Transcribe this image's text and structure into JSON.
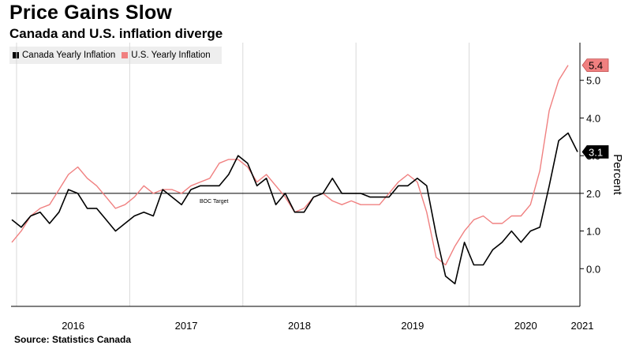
{
  "chart_data": {
    "type": "line",
    "title": "Price Gains Slow",
    "subtitle": "Canada and U.S. inflation diverge",
    "source": "Source: Statistics Canada",
    "ylabel": "Percent",
    "ylim": [
      -1.0,
      6.0
    ],
    "yticks": [
      0.0,
      1.0,
      2.0,
      3.0,
      4.0,
      5.0
    ],
    "ytick_labels": [
      "0.0",
      "1.0",
      "2.0",
      "3.0",
      "4.0",
      "5.0"
    ],
    "x_start": "2015-12",
    "year_labels": [
      {
        "label": "2016",
        "year": 2016
      },
      {
        "label": "2017",
        "year": 2017
      },
      {
        "label": "2018",
        "year": 2018
      },
      {
        "label": "2019",
        "year": 2019
      },
      {
        "label": "2020",
        "year": 2020
      },
      {
        "label": "2021",
        "year": 2021
      }
    ],
    "reference_line": {
      "value": 2.0,
      "label": "BOC Target"
    },
    "series": [
      {
        "name": "Canada Yearly Inflation",
        "color": "#000000",
        "end_label": "3.1",
        "values": [
          1.3,
          1.1,
          1.4,
          1.5,
          1.2,
          1.5,
          2.1,
          2.0,
          1.6,
          1.6,
          1.3,
          1.0,
          1.2,
          1.4,
          1.5,
          1.4,
          2.1,
          1.9,
          1.7,
          2.1,
          2.2,
          2.2,
          2.2,
          2.5,
          3.0,
          2.8,
          2.2,
          2.4,
          1.7,
          2.0,
          1.5,
          1.5,
          1.9,
          2.0,
          2.4,
          2.0,
          2.0,
          2.0,
          1.9,
          1.9,
          1.9,
          2.2,
          2.2,
          2.4,
          2.2,
          0.9,
          -0.2,
          -0.4,
          0.7,
          0.1,
          0.1,
          0.5,
          0.7,
          1.0,
          0.7,
          1.0,
          1.1,
          2.2,
          3.4,
          3.6,
          3.1
        ]
      },
      {
        "name": "U.S. Yearly Inflation",
        "color": "#f08080",
        "end_label": "5.4",
        "values": [
          0.7,
          1.0,
          1.4,
          1.6,
          1.7,
          2.1,
          2.5,
          2.7,
          2.4,
          2.2,
          1.9,
          1.6,
          1.7,
          1.9,
          2.2,
          2.0,
          2.1,
          2.1,
          2.0,
          2.2,
          2.3,
          2.4,
          2.8,
          2.9,
          2.9,
          2.7,
          2.3,
          2.5,
          2.2,
          1.9,
          1.5,
          1.6,
          1.9,
          2.0,
          1.8,
          1.7,
          1.8,
          1.7,
          1.7,
          1.7,
          2.0,
          2.3,
          2.5,
          2.3,
          1.5,
          0.3,
          0.1,
          0.6,
          1.0,
          1.3,
          1.4,
          1.2,
          1.2,
          1.4,
          1.4,
          1.7,
          2.6,
          4.2,
          5.0,
          5.4
        ]
      }
    ]
  }
}
